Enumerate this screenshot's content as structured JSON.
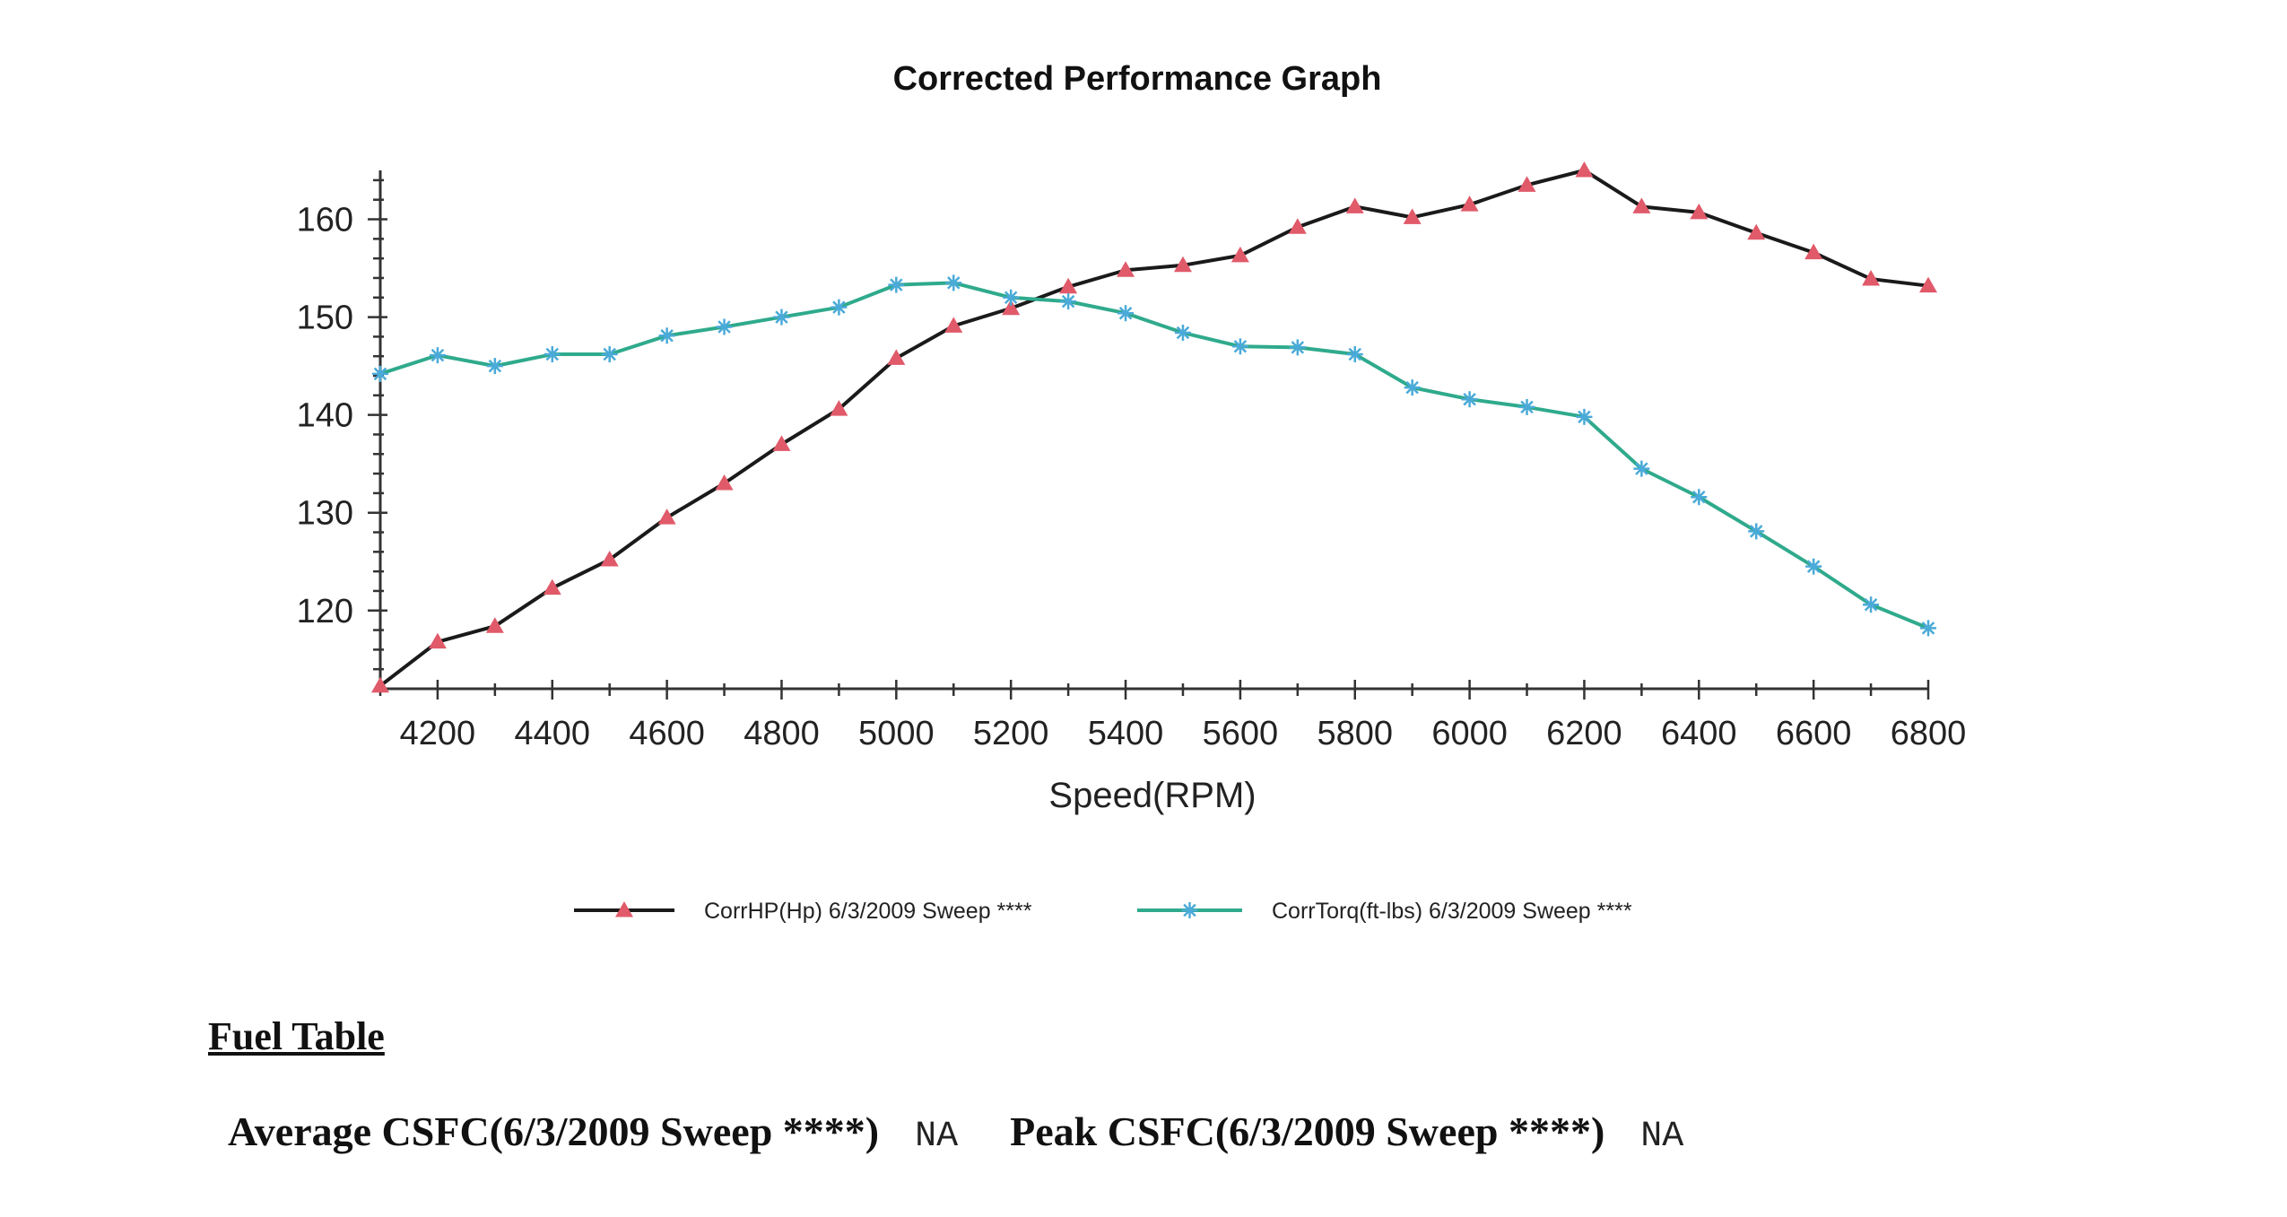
{
  "chart_data": {
    "type": "line",
    "title": "Corrected Performance Graph",
    "xlabel": "Speed(RPM)",
    "ylabel": "",
    "xlim": [
      4100,
      6800
    ],
    "ylim": [
      112,
      165
    ],
    "x_ticks": [
      4200,
      4400,
      4600,
      4800,
      5000,
      5200,
      5400,
      5600,
      5800,
      6000,
      6200,
      6400,
      6600,
      6800
    ],
    "y_ticks": [
      120,
      130,
      140,
      150,
      160
    ],
    "grid": false,
    "legend_position": "bottom",
    "x": [
      4100,
      4200,
      4300,
      4400,
      4500,
      4600,
      4700,
      4800,
      4900,
      5000,
      5100,
      5200,
      5300,
      5400,
      5500,
      5600,
      5700,
      5800,
      5900,
      6000,
      6100,
      6200,
      6300,
      6400,
      6500,
      6600,
      6700,
      6800
    ],
    "series": [
      {
        "name": "CorrHP(Hp) 6/3/2009 Sweep ****",
        "color": "#1a1a1a",
        "marker_color": "#e05a6a",
        "marker": "triangle",
        "values": [
          112.3,
          116.8,
          118.4,
          122.3,
          125.2,
          129.5,
          133.0,
          137.0,
          140.6,
          145.8,
          149.1,
          150.9,
          153.1,
          154.8,
          155.3,
          156.3,
          159.2,
          161.3,
          160.2,
          161.5,
          163.5,
          165.0,
          161.3,
          160.7,
          158.6,
          156.6,
          153.9,
          153.2
        ]
      },
      {
        "name": "CorrTorq(ft-lbs) 6/3/2009 Sweep ****",
        "color": "#2faa8c",
        "marker_color": "#4aaad8",
        "marker": "asterisk",
        "values": [
          144.2,
          146.1,
          145.0,
          146.2,
          146.2,
          148.1,
          149.0,
          150.0,
          151.0,
          153.3,
          153.5,
          152.0,
          151.6,
          150.4,
          148.4,
          147.0,
          146.9,
          146.2,
          142.8,
          141.6,
          140.8,
          139.8,
          134.5,
          131.6,
          128.1,
          124.5,
          120.6,
          118.2
        ]
      }
    ]
  },
  "fuel_table": {
    "heading": "Fuel Table",
    "average_label": "Average CSFC(6/3/2009 Sweep ****)",
    "average_value": "NA",
    "peak_label": "Peak CSFC(6/3/2009 Sweep ****)",
    "peak_value": "NA"
  }
}
